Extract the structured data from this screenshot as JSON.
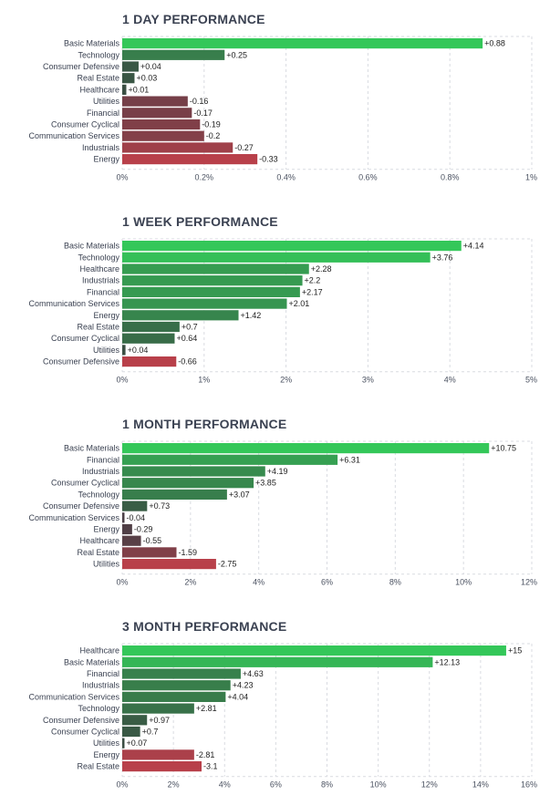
{
  "chart_data": [
    {
      "type": "bar",
      "orientation": "horizontal",
      "title": "1 DAY PERFORMANCE",
      "categories": [
        "Basic Materials",
        "Technology",
        "Consumer Defensive",
        "Real Estate",
        "Healthcare",
        "Utilities",
        "Financial",
        "Consumer Cyclical",
        "Communication Services",
        "Industrials",
        "Energy"
      ],
      "values": [
        0.88,
        0.25,
        0.04,
        0.03,
        0.01,
        -0.16,
        -0.17,
        -0.19,
        -0.2,
        -0.27,
        -0.33
      ],
      "value_labels": [
        "+0.88",
        "+0.25",
        "+0.04",
        "+0.03",
        "+0.01",
        "-0.16",
        "-0.17",
        "-0.19",
        "-0.2",
        "-0.27",
        "-0.33"
      ],
      "ticks": [
        "0%",
        "0.2%",
        "0.4%",
        "0.6%",
        "0.8%",
        "1%"
      ],
      "xlim": [
        0,
        1
      ],
      "bar_magnitude": "absolute",
      "grid": true
    },
    {
      "type": "bar",
      "orientation": "horizontal",
      "title": "1 WEEK PERFORMANCE",
      "categories": [
        "Basic Materials",
        "Technology",
        "Healthcare",
        "Industrials",
        "Financial",
        "Communication Services",
        "Energy",
        "Real Estate",
        "Consumer Cyclical",
        "Utilities",
        "Consumer Defensive"
      ],
      "values": [
        4.14,
        3.76,
        2.28,
        2.2,
        2.17,
        2.01,
        1.42,
        0.7,
        0.64,
        0.04,
        -0.66
      ],
      "value_labels": [
        "+4.14",
        "+3.76",
        "+2.28",
        "+2.2",
        "+2.17",
        "+2.01",
        "+1.42",
        "+0.7",
        "+0.64",
        "+0.04",
        "-0.66"
      ],
      "ticks": [
        "0%",
        "1%",
        "2%",
        "3%",
        "4%",
        "5%"
      ],
      "xlim": [
        0,
        5
      ],
      "bar_magnitude": "absolute",
      "grid": true
    },
    {
      "type": "bar",
      "orientation": "horizontal",
      "title": "1 MONTH PERFORMANCE",
      "categories": [
        "Basic Materials",
        "Financial",
        "Industrials",
        "Consumer Cyclical",
        "Technology",
        "Consumer Defensive",
        "Communication Services",
        "Energy",
        "Healthcare",
        "Real Estate",
        "Utilities"
      ],
      "values": [
        10.75,
        6.31,
        4.19,
        3.85,
        3.07,
        0.73,
        -0.04,
        -0.29,
        -0.55,
        -1.59,
        -2.75
      ],
      "value_labels": [
        "+10.75",
        "+6.31",
        "+4.19",
        "+3.85",
        "+3.07",
        "+0.73",
        "-0.04",
        "-0.29",
        "-0.55",
        "-1.59",
        "-2.75"
      ],
      "ticks": [
        "0%",
        "2%",
        "4%",
        "6%",
        "8%",
        "10%",
        "12%"
      ],
      "xlim": [
        0,
        12
      ],
      "bar_magnitude": "absolute",
      "grid": true
    },
    {
      "type": "bar",
      "orientation": "horizontal",
      "title": "3 MONTH PERFORMANCE",
      "categories": [
        "Healthcare",
        "Basic Materials",
        "Financial",
        "Industrials",
        "Communication Services",
        "Technology",
        "Consumer Defensive",
        "Consumer Cyclical",
        "Utilities",
        "Energy",
        "Real Estate"
      ],
      "values": [
        15,
        12.13,
        4.63,
        4.23,
        4.04,
        2.81,
        0.97,
        0.7,
        0.07,
        -2.81,
        -3.1
      ],
      "value_labels": [
        "+15",
        "+12.13",
        "+4.63",
        "+4.23",
        "+4.04",
        "+2.81",
        "+0.97",
        "+0.7",
        "+0.07",
        "-2.81",
        "-3.1"
      ],
      "ticks": [
        "0%",
        "2%",
        "4%",
        "6%",
        "8%",
        "10%",
        "12%",
        "14%",
        "16%"
      ],
      "xlim": [
        0,
        16
      ],
      "bar_magnitude": "absolute",
      "grid": true
    }
  ],
  "colors": {
    "positive_strong": "#34c759",
    "positive_dark": "#3a4a42",
    "negative_light": "#4a3f46",
    "negative_strong": "#b8404a",
    "grid": "#d9dbe1",
    "title": "#3b4252"
  }
}
